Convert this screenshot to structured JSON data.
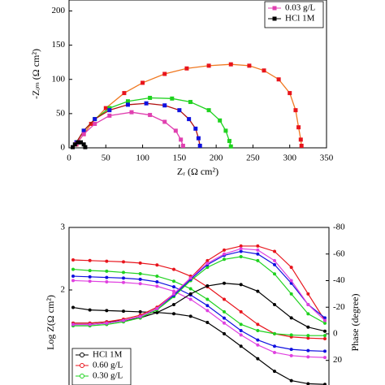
{
  "chart_data": [
    {
      "type": "scatter",
      "xlabel": "Zᵣ (Ω cm²)",
      "ylabel": "-Zᵢₘ (Ω cm²)",
      "xlim": [
        0,
        350
      ],
      "ylim": [
        0,
        216
      ],
      "xticks": [
        0,
        50,
        100,
        150,
        200,
        250,
        300,
        350
      ],
      "yticks": [
        0,
        50,
        100,
        150,
        200
      ],
      "legend": "upper right",
      "series": [
        {
          "color": "#e8141c",
          "line_color": "#f07820",
          "marker": "square",
          "x": [
            10,
            20,
            30,
            50,
            75,
            100,
            130,
            160,
            190,
            220,
            245,
            265,
            285,
            300,
            308,
            312,
            315,
            316
          ],
          "y": [
            5,
            20,
            35,
            58,
            80,
            95,
            108,
            116,
            120,
            122,
            120,
            113,
            100,
            80,
            55,
            30,
            12,
            3
          ]
        },
        {
          "color": "#1fd21f",
          "line_color": "#1fd21f",
          "marker": "square",
          "x": [
            10,
            20,
            35,
            55,
            80,
            110,
            140,
            165,
            190,
            205,
            213,
            218,
            220
          ],
          "y": [
            8,
            25,
            42,
            58,
            68,
            73,
            72,
            67,
            55,
            40,
            25,
            10,
            2
          ]
        },
        {
          "color": "#1010e0",
          "line_color": "#b01010",
          "marker": "square",
          "x": [
            10,
            20,
            35,
            55,
            80,
            105,
            130,
            150,
            163,
            172,
            176,
            178
          ],
          "y": [
            8,
            25,
            42,
            55,
            63,
            65,
            62,
            55,
            42,
            28,
            14,
            3
          ]
        },
        {
          "name": "0.03 g/L",
          "color": "#e040b0",
          "line_color": "#e040b0",
          "marker": "square",
          "x": [
            10,
            20,
            35,
            55,
            85,
            110,
            130,
            145,
            152,
            155
          ],
          "y": [
            6,
            20,
            35,
            47,
            52,
            48,
            38,
            25,
            12,
            3
          ]
        },
        {
          "name": "HCl 1M",
          "color": "#000000",
          "line_color": "#000000",
          "marker": "square",
          "x": [
            5,
            8,
            12,
            16,
            20,
            22
          ],
          "y": [
            1,
            5,
            8,
            8,
            5,
            1
          ]
        }
      ]
    },
    {
      "type": "line",
      "ylabel": "Log Z(Ω cm²)",
      "y2label": "Phase (degree)",
      "ylim": [
        0.48,
        3
      ],
      "yticks": [
        2,
        3
      ],
      "y2lim": [
        38.5,
        -80
      ],
      "y2ticks": [
        -80,
        -60,
        -40,
        -20,
        0,
        20
      ],
      "legend": "lower left",
      "series": [
        {
          "name": "HCl 1M",
          "color": "#000000",
          "marker": "circle",
          "values": [
            1.72,
            1.68,
            1.67,
            1.66,
            1.65,
            1.64,
            1.62,
            1.58,
            1.48,
            1.3,
            1.1,
            0.9,
            0.7,
            0.55,
            0.5,
            0.49
          ]
        },
        {
          "name": "0.60 g/L",
          "color": "#e8141c",
          "marker": "circle",
          "values": [
            2.48,
            2.47,
            2.46,
            2.45,
            2.43,
            2.4,
            2.33,
            2.22,
            2.05,
            1.85,
            1.65,
            1.45,
            1.3,
            1.25,
            1.23,
            1.22
          ]
        },
        {
          "name": "0.30 g/L",
          "color": "#1fd21f",
          "marker": "circle",
          "values": [
            2.33,
            2.31,
            2.3,
            2.28,
            2.26,
            2.22,
            2.14,
            2.02,
            1.85,
            1.65,
            1.45,
            1.35,
            1.3,
            1.28,
            1.27,
            1.27
          ]
        },
        {
          "color": "#1010e0",
          "marker": "circle",
          "values": [
            2.22,
            2.21,
            2.2,
            2.19,
            2.17,
            2.13,
            2.05,
            1.92,
            1.75,
            1.55,
            1.35,
            1.2,
            1.1,
            1.05,
            1.03,
            1.02
          ]
        },
        {
          "color": "#e040e0",
          "marker": "circle",
          "values": [
            2.15,
            2.14,
            2.13,
            2.12,
            2.1,
            2.06,
            1.98,
            1.85,
            1.67,
            1.47,
            1.28,
            1.12,
            1.0,
            0.95,
            0.93,
            0.92
          ]
        },
        {
          "color": "#000000",
          "marker": "circle",
          "axis": "y2",
          "values": [
            -8,
            -8,
            -9,
            -10,
            -12,
            -16,
            -22,
            -30,
            -36,
            -38,
            -37,
            -32,
            -22,
            -12,
            -5,
            -2
          ]
        },
        {
          "color": "#e8141c",
          "marker": "circle",
          "axis": "y2",
          "values": [
            -8,
            -8,
            -9,
            -11,
            -14,
            -20,
            -30,
            -42,
            -55,
            -63,
            -66,
            -66,
            -62,
            -50,
            -30,
            -10
          ]
        },
        {
          "color": "#1fd21f",
          "marker": "circle",
          "axis": "y2",
          "values": [
            -6,
            -6,
            -7,
            -9,
            -12,
            -18,
            -28,
            -40,
            -50,
            -56,
            -58,
            -55,
            -45,
            -30,
            -15,
            -8
          ]
        },
        {
          "color": "#1010e0",
          "marker": "circle",
          "axis": "y2",
          "values": [
            -7,
            -7,
            -8,
            -10,
            -13,
            -19,
            -29,
            -41,
            -52,
            -59,
            -62,
            -60,
            -52,
            -38,
            -22,
            -12
          ]
        },
        {
          "color": "#e040e0",
          "marker": "circle",
          "axis": "y2",
          "values": [
            -7,
            -7,
            -8,
            -10,
            -13,
            -19,
            -30,
            -42,
            -53,
            -60,
            -64,
            -63,
            -55,
            -40,
            -22,
            -10
          ]
        }
      ]
    }
  ]
}
